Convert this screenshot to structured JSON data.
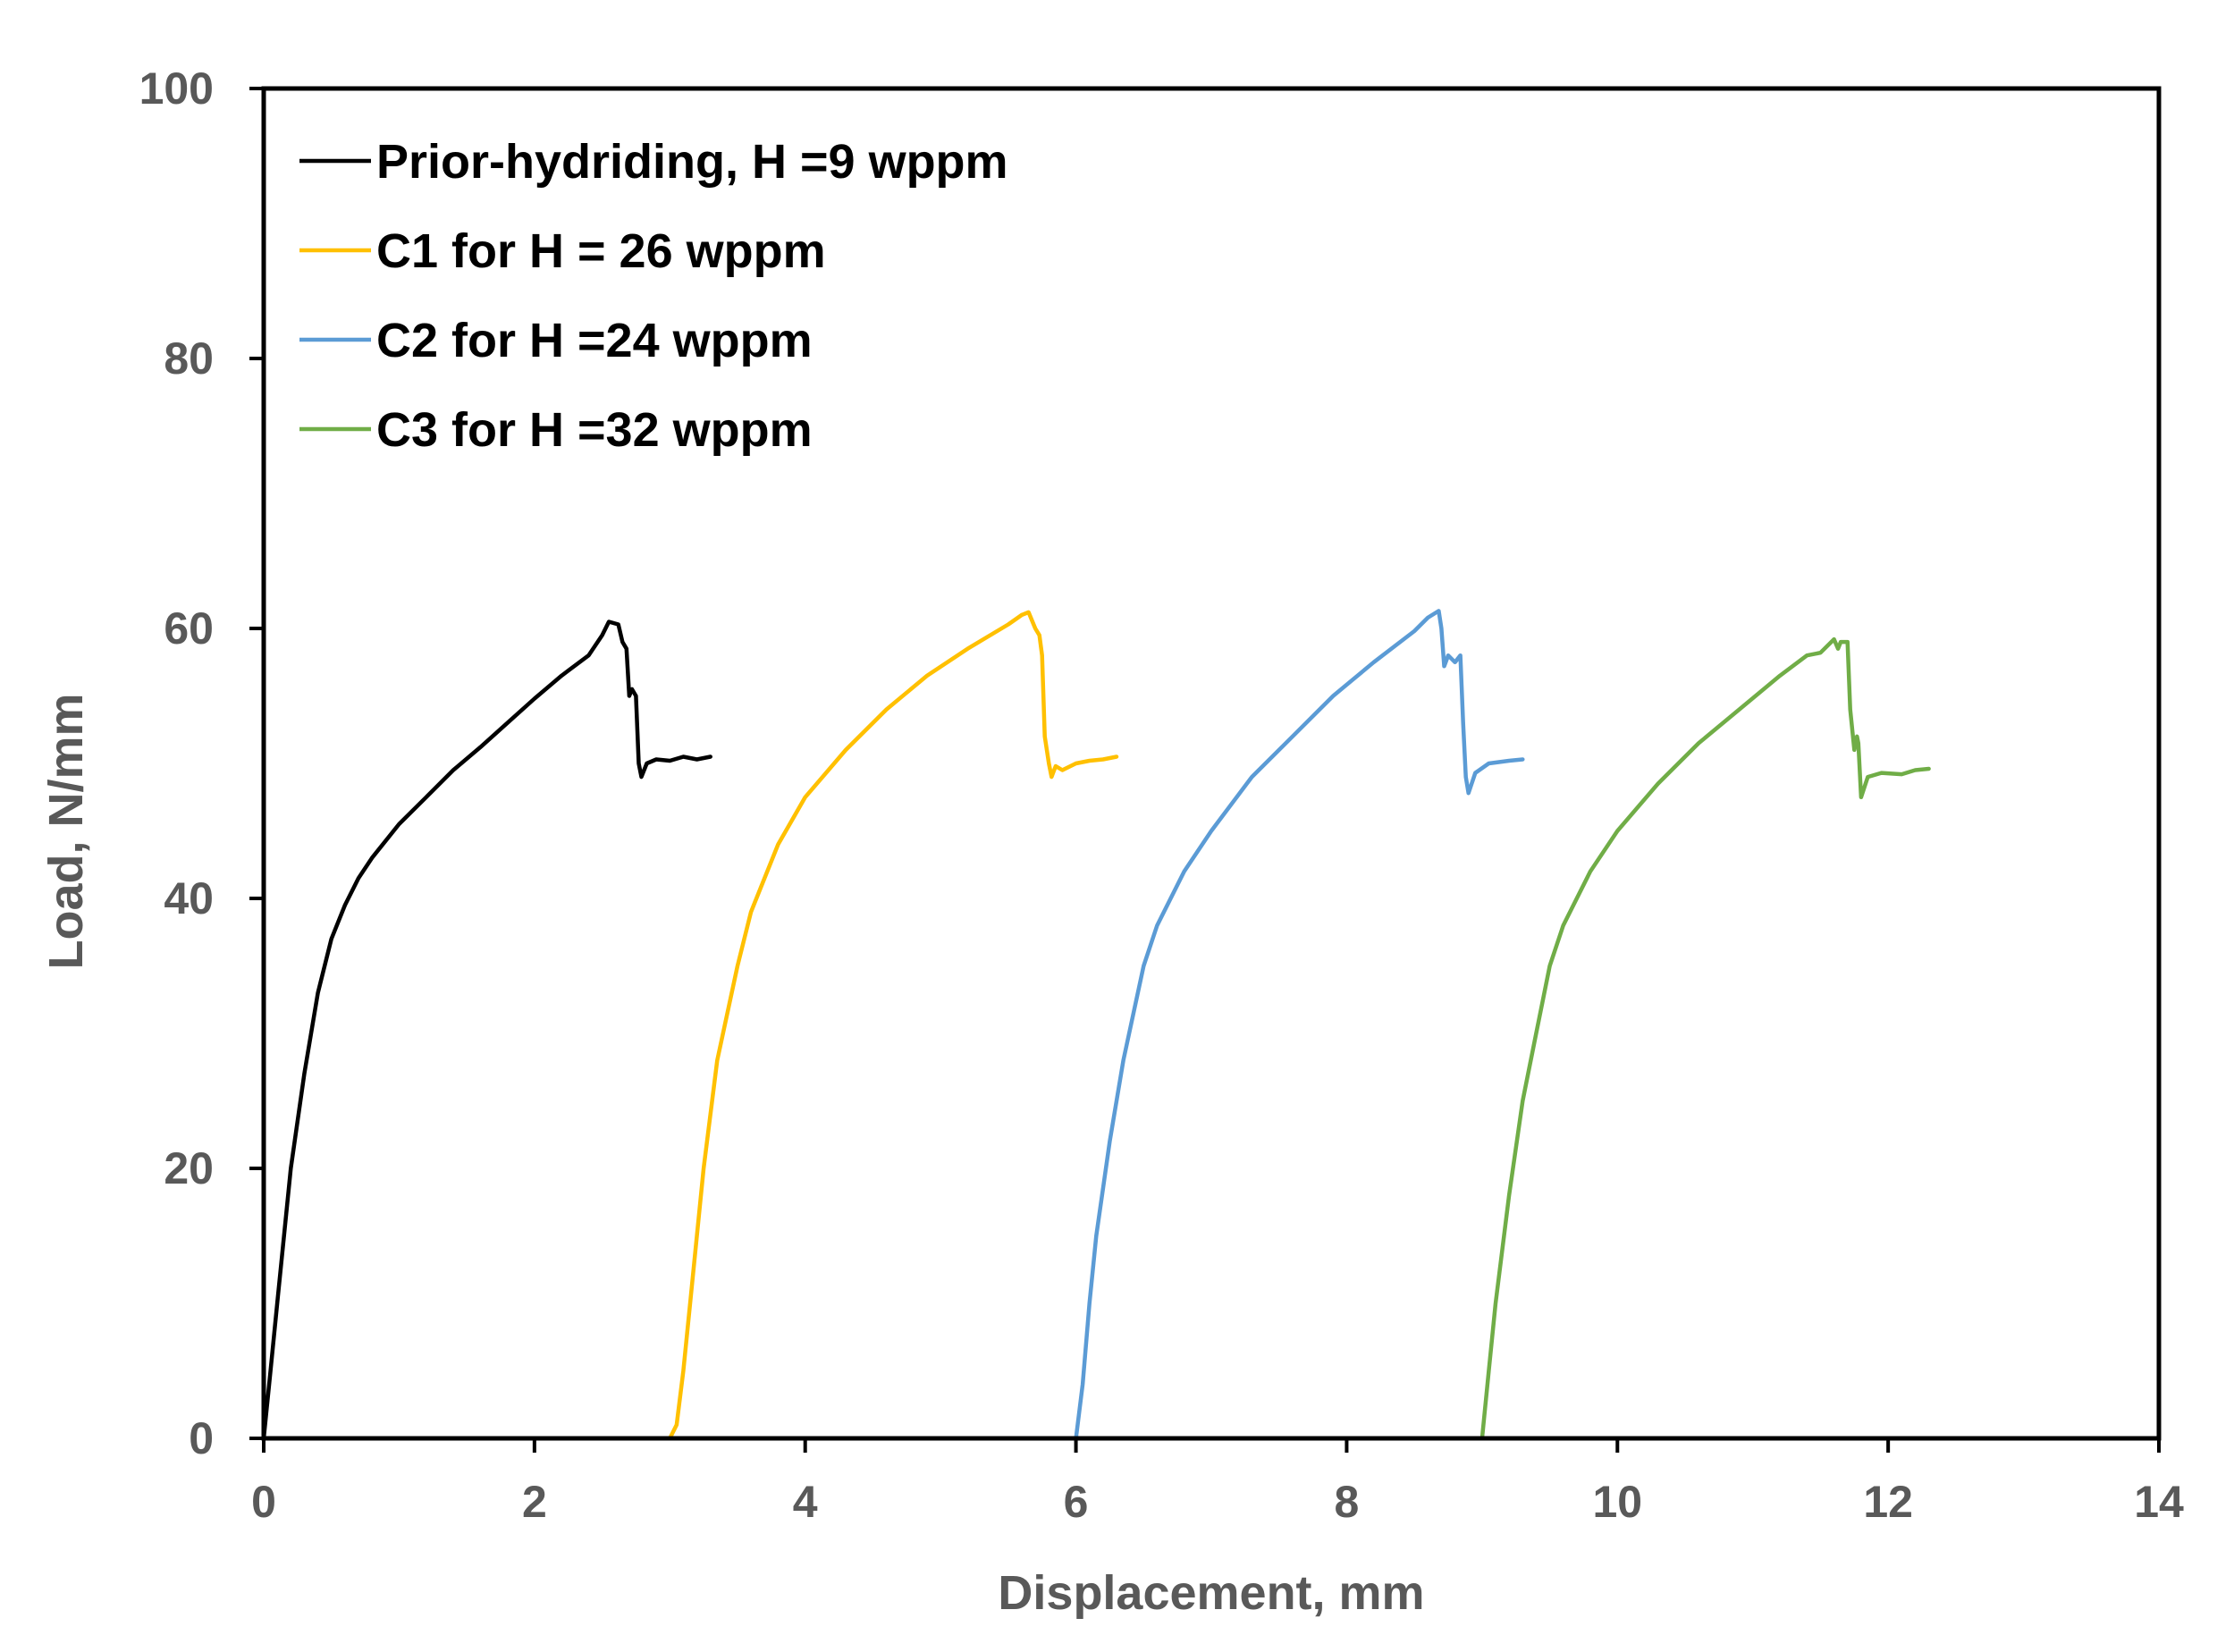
{
  "chart_data": {
    "type": "line",
    "title": "",
    "xlabel": "Displacement, mm",
    "ylabel": "Load, N/mm",
    "xlim": [
      0,
      14
    ],
    "ylim": [
      0,
      100
    ],
    "xticks": [
      0,
      2,
      4,
      6,
      8,
      10,
      12,
      14
    ],
    "yticks": [
      0,
      20,
      40,
      60,
      80,
      100
    ],
    "grid": false,
    "legend_position": "top-left",
    "series": [
      {
        "name": "Prior-hydriding, H =9 wppm",
        "color": "#000000",
        "points": [
          [
            0,
            0
          ],
          [
            0.05,
            5
          ],
          [
            0.1,
            10
          ],
          [
            0.15,
            15
          ],
          [
            0.2,
            20
          ],
          [
            0.3,
            27
          ],
          [
            0.4,
            33
          ],
          [
            0.5,
            37
          ],
          [
            0.6,
            39.5
          ],
          [
            0.7,
            41.5
          ],
          [
            0.8,
            43
          ],
          [
            1.0,
            45.5
          ],
          [
            1.2,
            47.5
          ],
          [
            1.4,
            49.5
          ],
          [
            1.6,
            51.2
          ],
          [
            1.8,
            53
          ],
          [
            2.0,
            54.8
          ],
          [
            2.2,
            56.5
          ],
          [
            2.4,
            58
          ],
          [
            2.5,
            59.5
          ],
          [
            2.55,
            60.5
          ],
          [
            2.62,
            60.3
          ],
          [
            2.65,
            59
          ],
          [
            2.68,
            58.5
          ],
          [
            2.7,
            55
          ],
          [
            2.72,
            55.5
          ],
          [
            2.75,
            55
          ],
          [
            2.77,
            50
          ],
          [
            2.79,
            49
          ],
          [
            2.83,
            50
          ],
          [
            2.9,
            50.3
          ],
          [
            3.0,
            50.2
          ],
          [
            3.1,
            50.5
          ],
          [
            3.2,
            50.3
          ],
          [
            3.3,
            50.5
          ]
        ]
      },
      {
        "name": "C1 for H = 26 wppm",
        "color": "#FFC000",
        "points": [
          [
            3.0,
            0
          ],
          [
            3.05,
            1
          ],
          [
            3.1,
            5
          ],
          [
            3.15,
            10
          ],
          [
            3.25,
            20
          ],
          [
            3.35,
            28
          ],
          [
            3.5,
            35
          ],
          [
            3.6,
            39
          ],
          [
            3.8,
            44
          ],
          [
            4.0,
            47.5
          ],
          [
            4.3,
            51
          ],
          [
            4.6,
            54
          ],
          [
            4.9,
            56.5
          ],
          [
            5.2,
            58.5
          ],
          [
            5.5,
            60.3
          ],
          [
            5.6,
            61
          ],
          [
            5.65,
            61.2
          ],
          [
            5.7,
            60
          ],
          [
            5.73,
            59.5
          ],
          [
            5.75,
            58
          ],
          [
            5.77,
            52
          ],
          [
            5.8,
            50
          ],
          [
            5.82,
            49
          ],
          [
            5.85,
            49.8
          ],
          [
            5.9,
            49.5
          ],
          [
            6.0,
            50
          ],
          [
            6.1,
            50.2
          ],
          [
            6.2,
            50.3
          ],
          [
            6.3,
            50.5
          ]
        ]
      },
      {
        "name": "C2 for H =24 wppm",
        "color": "#5B9BD5",
        "points": [
          [
            6.0,
            0
          ],
          [
            6.05,
            4
          ],
          [
            6.1,
            10
          ],
          [
            6.15,
            15
          ],
          [
            6.25,
            22
          ],
          [
            6.35,
            28
          ],
          [
            6.5,
            35
          ],
          [
            6.6,
            38
          ],
          [
            6.8,
            42
          ],
          [
            7.0,
            45
          ],
          [
            7.3,
            49
          ],
          [
            7.6,
            52
          ],
          [
            7.9,
            55
          ],
          [
            8.2,
            57.5
          ],
          [
            8.5,
            59.8
          ],
          [
            8.6,
            60.8
          ],
          [
            8.68,
            61.3
          ],
          [
            8.7,
            60
          ],
          [
            8.72,
            57.2
          ],
          [
            8.75,
            58
          ],
          [
            8.8,
            57.5
          ],
          [
            8.84,
            58
          ],
          [
            8.86,
            53
          ],
          [
            8.88,
            49
          ],
          [
            8.9,
            47.8
          ],
          [
            8.95,
            49.3
          ],
          [
            9.05,
            50
          ],
          [
            9.2,
            50.2
          ],
          [
            9.3,
            50.3
          ]
        ]
      },
      {
        "name": "C3 for H =32 wppm",
        "color": "#70AD47",
        "points": [
          [
            9.0,
            0
          ],
          [
            9.05,
            5
          ],
          [
            9.1,
            10
          ],
          [
            9.2,
            18
          ],
          [
            9.3,
            25
          ],
          [
            9.4,
            30
          ],
          [
            9.5,
            35
          ],
          [
            9.6,
            38
          ],
          [
            9.8,
            42
          ],
          [
            10.0,
            45
          ],
          [
            10.3,
            48.5
          ],
          [
            10.6,
            51.5
          ],
          [
            10.9,
            54
          ],
          [
            11.2,
            56.5
          ],
          [
            11.4,
            58
          ],
          [
            11.5,
            58.2
          ],
          [
            11.6,
            59.2
          ],
          [
            11.63,
            58.5
          ],
          [
            11.65,
            59
          ],
          [
            11.7,
            59
          ],
          [
            11.72,
            54
          ],
          [
            11.75,
            51
          ],
          [
            11.77,
            52
          ],
          [
            11.78,
            51.5
          ],
          [
            11.8,
            47.5
          ],
          [
            11.85,
            49
          ],
          [
            11.95,
            49.3
          ],
          [
            12.1,
            49.2
          ],
          [
            12.2,
            49.5
          ],
          [
            12.3,
            49.6
          ]
        ]
      }
    ]
  }
}
